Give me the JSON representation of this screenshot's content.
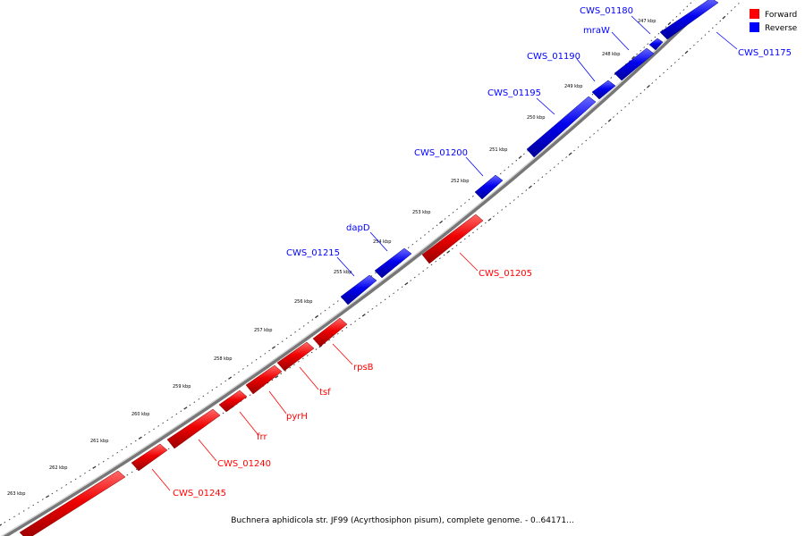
{
  "legend": [
    {
      "label": "Forward",
      "color": "#ff0000"
    },
    {
      "label": "Reverse",
      "color": "#0000ff"
    }
  ],
  "caption": "Buchnera aphidicola str. JF99 (Acyrthosiphon pisum), complete genome. - 0..64171...",
  "ticks": [
    "247 kbp",
    "248 kbp",
    "249 kbp",
    "250 kbp",
    "251 kbp",
    "252 kbp",
    "253 kbp",
    "254 kbp",
    "255 kbp",
    "256 kbp",
    "257 kbp",
    "258 kbp",
    "259 kbp",
    "260 kbp",
    "261 kbp",
    "262 kbp",
    "263 kbp"
  ],
  "genes": [
    {
      "name": "CWS_01175",
      "strand": "reverse",
      "color": "#0000ff"
    },
    {
      "name": "CWS_01180",
      "strand": "reverse",
      "color": "#0000ff"
    },
    {
      "name": "mraW",
      "strand": "reverse",
      "color": "#0000ff"
    },
    {
      "name": "CWS_01190",
      "strand": "reverse",
      "color": "#0000ff"
    },
    {
      "name": "CWS_01195",
      "strand": "reverse",
      "color": "#0000ff"
    },
    {
      "name": "CWS_01200",
      "strand": "reverse",
      "color": "#0000ff"
    },
    {
      "name": "CWS_01205",
      "strand": "forward",
      "color": "#ff0000"
    },
    {
      "name": "dapD",
      "strand": "reverse",
      "color": "#0000ff"
    },
    {
      "name": "CWS_01215",
      "strand": "reverse",
      "color": "#0000ff"
    },
    {
      "name": "rpsB",
      "strand": "forward",
      "color": "#ff0000"
    },
    {
      "name": "tsf",
      "strand": "forward",
      "color": "#ff0000"
    },
    {
      "name": "pyrH",
      "strand": "forward",
      "color": "#ff0000"
    },
    {
      "name": "frr",
      "strand": "forward",
      "color": "#ff0000"
    },
    {
      "name": "CWS_01240",
      "strand": "forward",
      "color": "#ff0000"
    },
    {
      "name": "CWS_01245",
      "strand": "forward",
      "color": "#ff0000"
    }
  ]
}
